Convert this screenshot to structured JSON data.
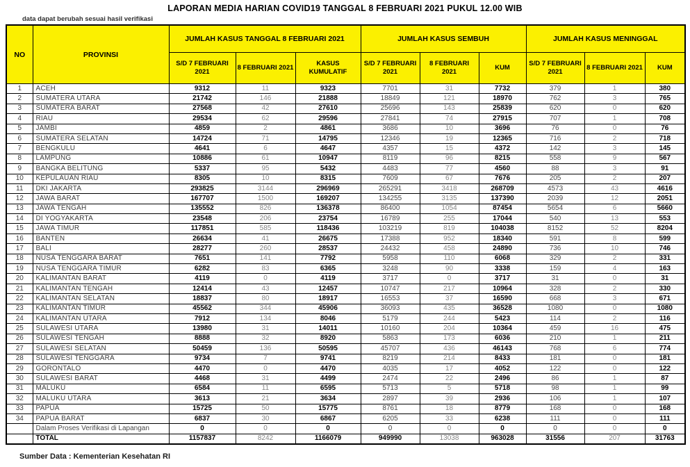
{
  "page": {
    "title": "LAPORAN MEDIA HARIAN COVID19 TANGGAL 8 FEBRUARI 2021 PUKUL 12.00 WIB",
    "note": "data dapat berubah sesuai hasil verifikasi",
    "source": "Sumber Data : Kementerian Kesehatan RI"
  },
  "colors": {
    "header_bg": "#FBF000",
    "border": "#000000",
    "muted_value": "#848484"
  },
  "table": {
    "col_headers": {
      "no": "NO",
      "provinsi": "PROVINSI",
      "groups": [
        {
          "label": "JUMLAH KASUS TANGGAL 8 FEBRUARI 2021",
          "sub": [
            "S/D 7 FEBRUARI 2021",
            "8 FEBRUARI 2021",
            "KASUS KUMULATIF"
          ]
        },
        {
          "label": "JUMLAH KASUS SEMBUH",
          "sub": [
            "S/D 7 FEBRUARI 2021",
            "8 FEBRUARI 2021",
            "KUM"
          ]
        },
        {
          "label": "JUMLAH KASUS MENINGGAL",
          "sub": [
            "S/D 7 FEBRUARI 2021",
            "8 FEBRUARI 2021",
            "KUM"
          ]
        }
      ]
    },
    "rows": [
      {
        "no": 1,
        "provinsi": "ACEH",
        "values": [
          9312,
          11,
          9323,
          7701,
          31,
          7732,
          379,
          1,
          380
        ]
      },
      {
        "no": 2,
        "provinsi": "SUMATERA UTARA",
        "values": [
          21742,
          146,
          21888,
          18849,
          121,
          18970,
          762,
          3,
          765
        ]
      },
      {
        "no": 3,
        "provinsi": "SUMATERA BARAT",
        "values": [
          27568,
          42,
          27610,
          25696,
          143,
          25839,
          620,
          0,
          620
        ]
      },
      {
        "no": 4,
        "provinsi": "RIAU",
        "values": [
          29534,
          62,
          29596,
          27841,
          74,
          27915,
          707,
          1,
          708
        ]
      },
      {
        "no": 5,
        "provinsi": "JAMBI",
        "values": [
          4859,
          2,
          4861,
          3686,
          10,
          3696,
          76,
          0,
          76
        ]
      },
      {
        "no": 6,
        "provinsi": "SUMATERA SELATAN",
        "values": [
          14724,
          71,
          14795,
          12346,
          19,
          12365,
          716,
          2,
          718
        ]
      },
      {
        "no": 7,
        "provinsi": "BENGKULU",
        "values": [
          4641,
          6,
          4647,
          4357,
          15,
          4372,
          142,
          3,
          145
        ]
      },
      {
        "no": 8,
        "provinsi": "LAMPUNG",
        "values": [
          10886,
          61,
          10947,
          8119,
          96,
          8215,
          558,
          9,
          567
        ]
      },
      {
        "no": 9,
        "provinsi": "BANGKA BELITUNG",
        "values": [
          5337,
          95,
          5432,
          4483,
          77,
          4560,
          88,
          3,
          91
        ]
      },
      {
        "no": 10,
        "provinsi": "KEPULAUAN RIAU",
        "values": [
          8305,
          10,
          8315,
          7609,
          67,
          7676,
          205,
          2,
          207
        ]
      },
      {
        "no": 11,
        "provinsi": "DKI JAKARTA",
        "values": [
          293825,
          3144,
          296969,
          265291,
          3418,
          268709,
          4573,
          43,
          4616
        ]
      },
      {
        "no": 12,
        "provinsi": "JAWA BARAT",
        "values": [
          167707,
          1500,
          169207,
          134255,
          3135,
          137390,
          2039,
          12,
          2051
        ]
      },
      {
        "no": 13,
        "provinsi": "JAWA TENGAH",
        "values": [
          135552,
          826,
          136378,
          86400,
          1054,
          87454,
          5654,
          6,
          5660
        ]
      },
      {
        "no": 14,
        "provinsi": "DI YOGYAKARTA",
        "values": [
          23548,
          206,
          23754,
          16789,
          255,
          17044,
          540,
          13,
          553
        ]
      },
      {
        "no": 15,
        "provinsi": "JAWA TIMUR",
        "values": [
          117851,
          585,
          118436,
          103219,
          819,
          104038,
          8152,
          52,
          8204
        ]
      },
      {
        "no": 16,
        "provinsi": "BANTEN",
        "values": [
          26634,
          41,
          26675,
          17388,
          952,
          18340,
          591,
          8,
          599
        ]
      },
      {
        "no": 17,
        "provinsi": "BALI",
        "values": [
          28277,
          260,
          28537,
          24432,
          458,
          24890,
          736,
          10,
          746
        ]
      },
      {
        "no": 18,
        "provinsi": "NUSA TENGGARA BARAT",
        "values": [
          7651,
          141,
          7792,
          5958,
          110,
          6068,
          329,
          2,
          331
        ]
      },
      {
        "no": 19,
        "provinsi": "NUSA TENGGARA TIMUR",
        "values": [
          6282,
          83,
          6365,
          3248,
          90,
          3338,
          159,
          4,
          163
        ]
      },
      {
        "no": 20,
        "provinsi": "KALIMANTAN BARAT",
        "values": [
          4119,
          0,
          4119,
          3717,
          0,
          3717,
          31,
          0,
          31
        ]
      },
      {
        "no": 21,
        "provinsi": "KALIMANTAN TENGAH",
        "values": [
          12414,
          43,
          12457,
          10747,
          217,
          10964,
          328,
          2,
          330
        ]
      },
      {
        "no": 22,
        "provinsi": "KALIMANTAN SELATAN",
        "values": [
          18837,
          80,
          18917,
          16553,
          37,
          16590,
          668,
          3,
          671
        ]
      },
      {
        "no": 23,
        "provinsi": "KALIMANTAN TIMUR",
        "values": [
          45562,
          344,
          45906,
          36093,
          435,
          36528,
          1080,
          0,
          1080
        ]
      },
      {
        "no": 24,
        "provinsi": "KALIMANTAN UTARA",
        "values": [
          7912,
          134,
          8046,
          5179,
          244,
          5423,
          114,
          2,
          116
        ]
      },
      {
        "no": 25,
        "provinsi": "SULAWESI UTARA",
        "values": [
          13980,
          31,
          14011,
          10160,
          204,
          10364,
          459,
          16,
          475
        ]
      },
      {
        "no": 26,
        "provinsi": "SULAWESI TENGAH",
        "values": [
          8888,
          32,
          8920,
          5863,
          173,
          6036,
          210,
          1,
          211
        ]
      },
      {
        "no": 27,
        "provinsi": "SULAWESI SELATAN",
        "values": [
          50459,
          136,
          50595,
          45707,
          436,
          46143,
          768,
          6,
          774
        ]
      },
      {
        "no": 28,
        "provinsi": "SULAWESI TENGGARA",
        "values": [
          9734,
          7,
          9741,
          8219,
          214,
          8433,
          181,
          0,
          181
        ]
      },
      {
        "no": 29,
        "provinsi": "GORONTALO",
        "values": [
          4470,
          0,
          4470,
          4035,
          17,
          4052,
          122,
          0,
          122
        ]
      },
      {
        "no": 30,
        "provinsi": "SULAWESI BARAT",
        "values": [
          4468,
          31,
          4499,
          2474,
          22,
          2496,
          86,
          1,
          87
        ]
      },
      {
        "no": 31,
        "provinsi": "MALUKU",
        "values": [
          6584,
          11,
          6595,
          5713,
          5,
          5718,
          98,
          1,
          99
        ]
      },
      {
        "no": 32,
        "provinsi": "MALUKU UTARA",
        "values": [
          3613,
          21,
          3634,
          2897,
          39,
          2936,
          106,
          1,
          107
        ]
      },
      {
        "no": 33,
        "provinsi": "PAPUA",
        "values": [
          15725,
          50,
          15775,
          8761,
          18,
          8779,
          168,
          0,
          168
        ]
      },
      {
        "no": 34,
        "provinsi": "PAPUA BARAT",
        "values": [
          6837,
          30,
          6867,
          6205,
          33,
          6238,
          111,
          0,
          111
        ]
      }
    ],
    "extra_row": {
      "label": "Dalam Proses Verifikasi di Lapangan",
      "values": [
        0,
        0,
        0,
        0,
        0,
        0,
        0,
        0,
        0
      ]
    },
    "total_row": {
      "label": "TOTAL",
      "values": [
        1157837,
        8242,
        1166079,
        949990,
        13038,
        963028,
        31556,
        207,
        31763
      ]
    }
  }
}
